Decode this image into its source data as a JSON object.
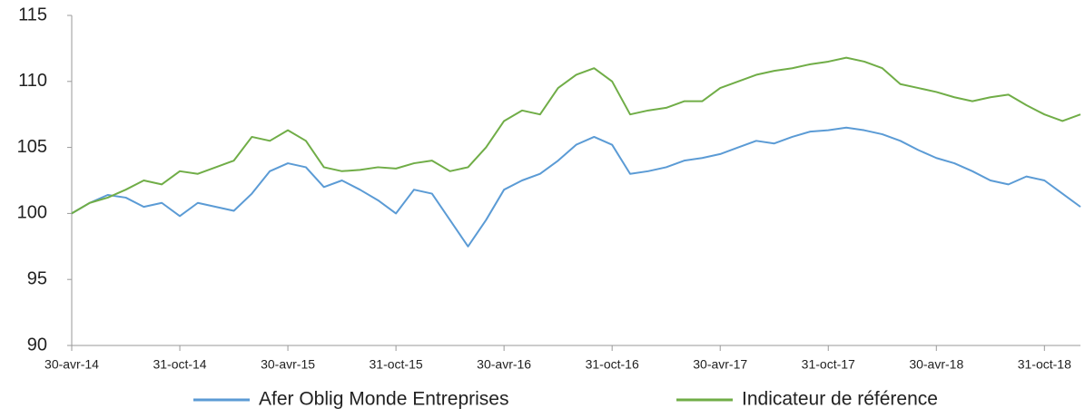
{
  "chart_data": {
    "type": "line",
    "categories": [
      "30-avr-14",
      null,
      null,
      null,
      null,
      null,
      "31-oct-14",
      null,
      null,
      null,
      null,
      null,
      "30-avr-15",
      null,
      null,
      null,
      null,
      null,
      "31-oct-15",
      null,
      null,
      null,
      null,
      null,
      "30-avr-16",
      null,
      null,
      null,
      null,
      null,
      "31-oct-16",
      null,
      null,
      null,
      null,
      null,
      "30-avr-17",
      null,
      null,
      null,
      null,
      null,
      "31-oct-17",
      null,
      null,
      null,
      null,
      null,
      "30-avr-18",
      null,
      null,
      null,
      null,
      null,
      "31-oct-18",
      null,
      null
    ],
    "series": [
      {
        "name": "Afer Oblig Monde Entreprises",
        "color": "#5b9bd5",
        "values": [
          100,
          100.8,
          101.4,
          101.2,
          100.5,
          100.8,
          99.8,
          100.8,
          100.5,
          100.2,
          101.5,
          103.2,
          103.8,
          103.5,
          102,
          102.5,
          101.8,
          101,
          100,
          101.8,
          101.5,
          99.5,
          97.5,
          99.5,
          101.8,
          102.5,
          103,
          104,
          105.2,
          105.8,
          105.2,
          103,
          103.2,
          103.5,
          104,
          104.2,
          104.5,
          105,
          105.5,
          105.3,
          105.8,
          106.2,
          106.3,
          106.5,
          106.3,
          106,
          105.5,
          104.8,
          104.2,
          103.8,
          103.2,
          102.5,
          102.2,
          102.8,
          102.5,
          101.5,
          100.5
        ]
      },
      {
        "name": "Indicateur de référence",
        "color": "#70ad47",
        "values": [
          100,
          100.8,
          101.2,
          101.8,
          102.5,
          102.2,
          103.2,
          103,
          103.5,
          104,
          105.8,
          105.5,
          106.3,
          105.5,
          103.5,
          103.2,
          103.3,
          103.5,
          103.4,
          103.8,
          104,
          103.2,
          103.5,
          105,
          107,
          107.8,
          107.5,
          109.5,
          110.5,
          111,
          110,
          107.5,
          107.8,
          108,
          108.5,
          108.5,
          109.5,
          110,
          110.5,
          110.8,
          111,
          111.3,
          111.5,
          111.8,
          111.5,
          111,
          109.8,
          109.5,
          109.2,
          108.8,
          108.5,
          108.8,
          109,
          108.2,
          107.5,
          107,
          107.5
        ]
      }
    ],
    "ylim": [
      90,
      115
    ],
    "yticks": [
      90,
      95,
      100,
      105,
      110,
      115
    ],
    "grid": false,
    "legend": "bottom"
  }
}
